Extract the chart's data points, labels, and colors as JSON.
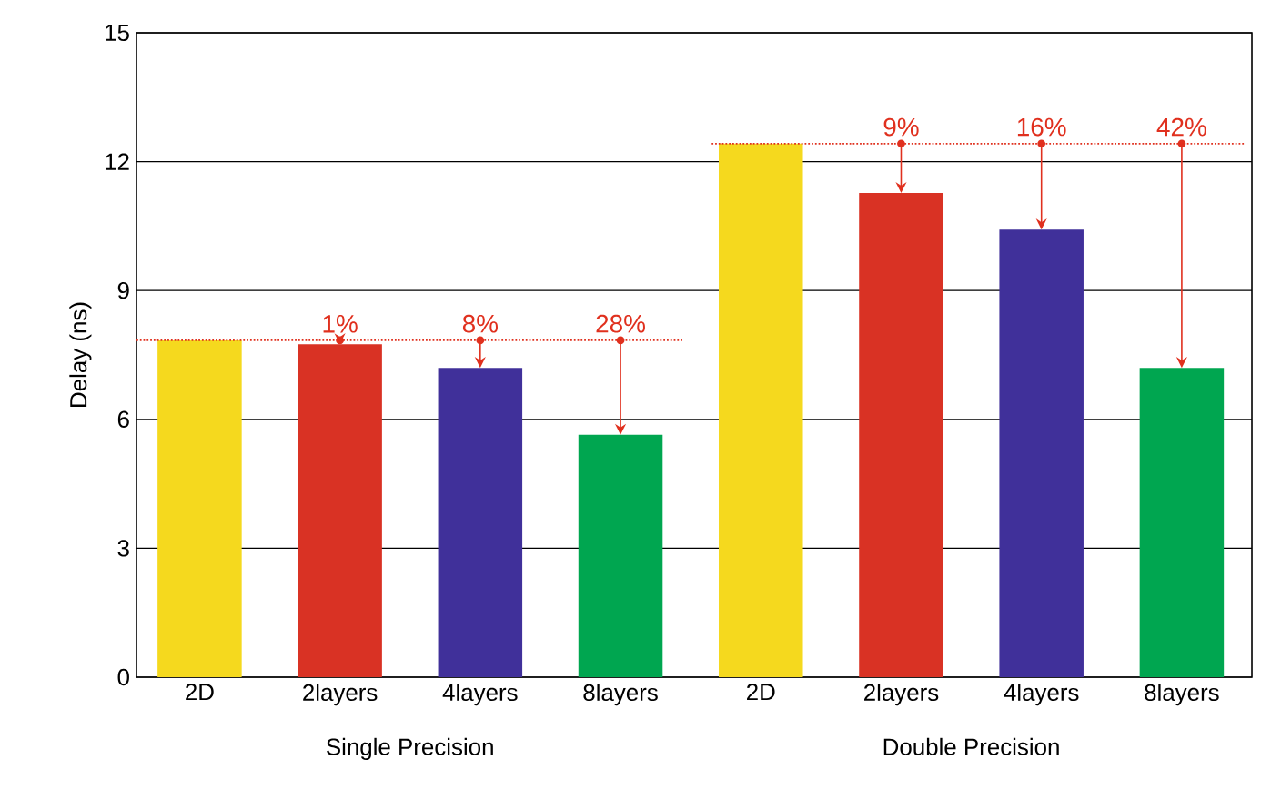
{
  "chart_data": {
    "type": "bar",
    "ylabel": "Delay (ns)",
    "categories": [
      "2D",
      "2layers",
      "4layers",
      "8layers",
      "2D",
      "2layers",
      "4layers",
      "8layers"
    ],
    "values": [
      7.84,
      7.75,
      7.2,
      5.64,
      12.42,
      11.27,
      10.42,
      7.2
    ],
    "colors": [
      "#f5d91e",
      "#d93224",
      "#40309a",
      "#00a650",
      "#f5d91e",
      "#d93224",
      "#40309a",
      "#00a650"
    ],
    "ref_lines": [
      {
        "axis": "y",
        "value": 7.84,
        "color": "#e0301e",
        "line_style": "dotted"
      },
      {
        "axis": "y",
        "value": 12.42,
        "color": "#e0301e",
        "line_style": "dotted"
      }
    ],
    "annotations": [
      "Single Precision",
      "Double Precision",
      {
        "text": "1%",
        "y": 7.75
      },
      {
        "text": "8%",
        "y": 7.2
      },
      {
        "text": "28%",
        "y": 5.64
      },
      {
        "text": "9%",
        "y": 11.27
      },
      {
        "text": "16%",
        "y": 10.42
      },
      {
        "text": "42%",
        "y": 7.2
      }
    ],
    "ylim": [
      0,
      15
    ],
    "yticks": [
      0,
      3,
      6,
      9,
      12,
      15
    ],
    "grid": "y",
    "legend": false
  }
}
